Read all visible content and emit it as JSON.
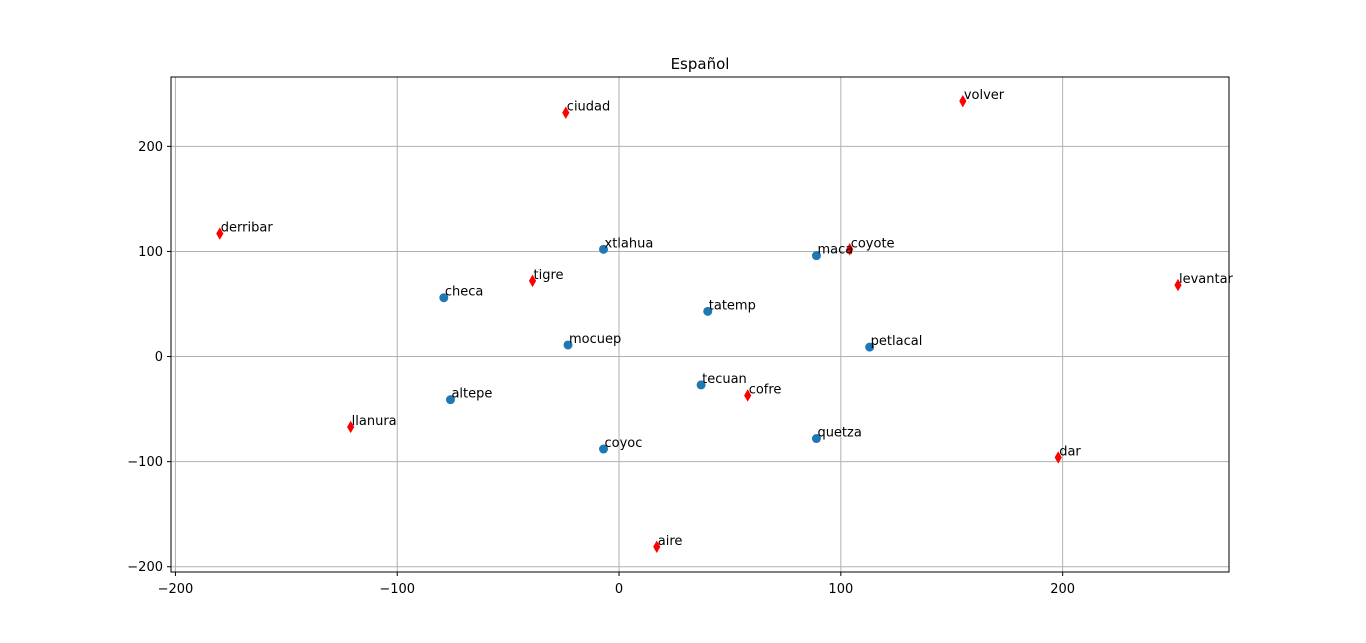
{
  "chart_data": {
    "type": "scatter",
    "title": "Español",
    "xlabel": "",
    "ylabel": "",
    "xlim": [
      -202,
      275
    ],
    "ylim": [
      -205,
      266
    ],
    "xticks": [
      -200,
      -100,
      0,
      100,
      200
    ],
    "yticks": [
      -200,
      -100,
      0,
      100,
      200
    ],
    "xtick_labels": [
      "−200",
      "−100",
      "0",
      "100",
      "200"
    ],
    "ytick_labels": [
      "−200",
      "−100",
      "0",
      "100",
      "200"
    ],
    "grid": true,
    "series": [
      {
        "marker": "circle",
        "color": "#1f77b4",
        "points": [
          {
            "label": "xtlahua",
            "x": -7,
            "y": 102
          },
          {
            "label": "maca",
            "x": 89,
            "y": 96
          },
          {
            "label": "checa",
            "x": -79,
            "y": 56
          },
          {
            "label": "tatemp",
            "x": 40,
            "y": 43
          },
          {
            "label": "mocuep",
            "x": -23,
            "y": 11
          },
          {
            "label": "petlacal",
            "x": 113,
            "y": 9
          },
          {
            "label": "tecuan",
            "x": 37,
            "y": -27
          },
          {
            "label": "altepe",
            "x": -76,
            "y": -41
          },
          {
            "label": "quetza",
            "x": 89,
            "y": -78
          },
          {
            "label": "coyoc",
            "x": -7,
            "y": -88
          }
        ]
      },
      {
        "marker": "thin_diamond",
        "color": "#ff0000",
        "points": [
          {
            "label": "volver",
            "x": 155,
            "y": 243
          },
          {
            "label": "ciudad",
            "x": -24,
            "y": 232
          },
          {
            "label": "derribar",
            "x": -180,
            "y": 117
          },
          {
            "label": "coyote",
            "x": 104,
            "y": 102
          },
          {
            "label": "tigre",
            "x": -39,
            "y": 72
          },
          {
            "label": "levantar",
            "x": 252,
            "y": 68
          },
          {
            "label": "cofre",
            "x": 58,
            "y": -37
          },
          {
            "label": "llanura",
            "x": -121,
            "y": -67
          },
          {
            "label": "dar",
            "x": 198,
            "y": -96
          },
          {
            "label": "aire",
            "x": 17,
            "y": -181
          }
        ]
      }
    ]
  }
}
